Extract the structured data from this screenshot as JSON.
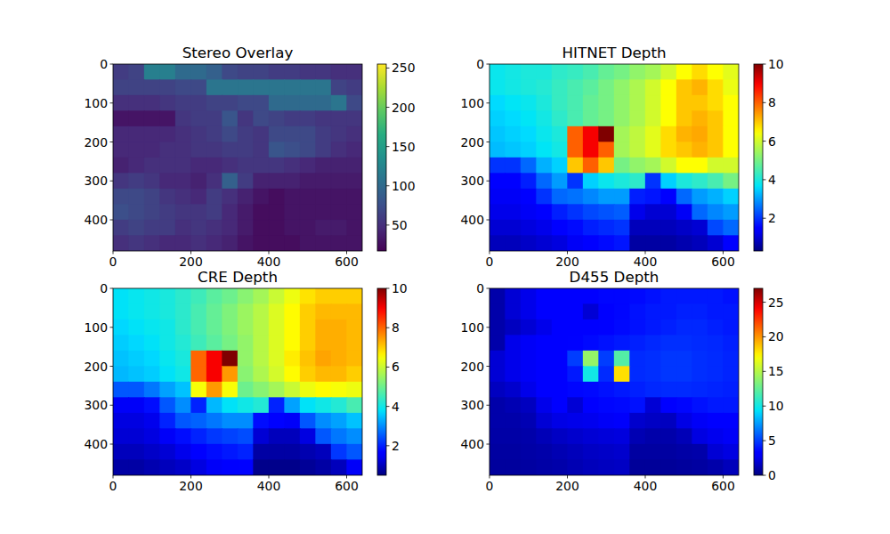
{
  "chart_data": [
    {
      "type": "heatmap",
      "title": "Stereo Overlay",
      "color": "viridis",
      "xlim": [
        0,
        640
      ],
      "ylim": [
        480,
        0
      ],
      "xticks": [
        0,
        200,
        400,
        600
      ],
      "yticks": [
        0,
        100,
        200,
        300,
        400
      ],
      "cells": [
        [
          60,
          65,
          120,
          120,
          100,
          100,
          90,
          70,
          65,
          65,
          60,
          60,
          55,
          55,
          50,
          50
        ],
        [
          65,
          65,
          65,
          65,
          70,
          70,
          110,
          110,
          110,
          110,
          110,
          110,
          110,
          110,
          65,
          60
        ],
        [
          50,
          50,
          50,
          55,
          60,
          60,
          65,
          65,
          70,
          70,
          100,
          100,
          100,
          100,
          110,
          70
        ],
        [
          30,
          30,
          30,
          30,
          55,
          60,
          60,
          80,
          55,
          70,
          65,
          60,
          60,
          55,
          55,
          55
        ],
        [
          45,
          45,
          45,
          45,
          50,
          55,
          60,
          70,
          60,
          55,
          70,
          70,
          70,
          60,
          55,
          50
        ],
        [
          45,
          45,
          45,
          50,
          50,
          55,
          55,
          60,
          60,
          55,
          80,
          75,
          70,
          60,
          50,
          45
        ],
        [
          40,
          45,
          50,
          50,
          50,
          45,
          45,
          50,
          55,
          55,
          55,
          50,
          45,
          40,
          40,
          40
        ],
        [
          55,
          60,
          55,
          45,
          45,
          40,
          50,
          90,
          60,
          40,
          40,
          40,
          35,
          35,
          35,
          35
        ],
        [
          70,
          70,
          65,
          55,
          50,
          45,
          60,
          50,
          40,
          30,
          25,
          30,
          30,
          30,
          30,
          30
        ],
        [
          75,
          70,
          65,
          60,
          55,
          55,
          60,
          45,
          35,
          25,
          25,
          30,
          30,
          30,
          30,
          30
        ],
        [
          60,
          65,
          60,
          60,
          50,
          55,
          50,
          45,
          35,
          25,
          25,
          30,
          30,
          35,
          35,
          30
        ],
        [
          50,
          55,
          50,
          45,
          45,
          50,
          45,
          40,
          30,
          25,
          25,
          25,
          30,
          30,
          30,
          30
        ]
      ],
      "colorbar": {
        "range": [
          17,
          255
        ],
        "ticks": [
          50,
          100,
          150,
          200,
          250
        ]
      }
    },
    {
      "type": "heatmap",
      "title": "HITNET Depth",
      "color": "jet",
      "xlim": [
        0,
        640
      ],
      "ylim": [
        480,
        0
      ],
      "xticks": [
        0,
        200,
        400,
        600
      ],
      "yticks": [
        0,
        100,
        200,
        300,
        400
      ],
      "cells": [
        [
          3.8,
          3.9,
          4,
          4,
          4.2,
          4.3,
          4.5,
          4.8,
          5,
          5.3,
          5.5,
          6,
          6.5,
          6.8,
          6.5,
          6.2
        ],
        [
          3.8,
          3.9,
          4,
          4.1,
          4.3,
          4.5,
          4.7,
          5,
          5.3,
          5.6,
          6,
          6.5,
          7,
          7.2,
          6.8,
          6.3
        ],
        [
          3.6,
          3.7,
          3.8,
          4,
          4.3,
          4.5,
          4.8,
          5,
          5.3,
          5.6,
          6,
          6.5,
          7,
          7,
          6.8,
          6.5
        ],
        [
          3.5,
          3.6,
          3.7,
          3.9,
          4.2,
          4.5,
          4.8,
          5,
          5.3,
          5.6,
          6,
          6.5,
          7,
          7.2,
          7,
          6.5
        ],
        [
          3.4,
          3.5,
          3.6,
          3.8,
          4,
          8,
          9,
          10,
          5.5,
          5.8,
          6.2,
          6.8,
          7.2,
          7.3,
          7,
          6.5
        ],
        [
          3.3,
          3.4,
          3.5,
          3.7,
          3.9,
          8,
          9,
          8,
          5.5,
          5.8,
          6.2,
          6.8,
          7,
          7.2,
          7,
          6.5
        ],
        [
          2,
          2,
          2.5,
          3.2,
          3.5,
          7,
          8,
          7,
          5,
          5.3,
          5.5,
          6,
          6.5,
          6.5,
          6,
          6
        ],
        [
          1.5,
          1.5,
          1.8,
          2.5,
          3,
          2,
          3.5,
          3.8,
          4,
          4.2,
          2,
          3.5,
          4,
          4.2,
          4.5,
          5
        ],
        [
          1.3,
          1.3,
          1.4,
          2,
          2.5,
          2.6,
          2.8,
          3,
          3,
          1.8,
          1.7,
          1.5,
          2.5,
          3,
          3.2,
          3.5
        ],
        [
          1.2,
          1.2,
          1.3,
          1.5,
          1.8,
          2,
          2.2,
          2.3,
          2.4,
          1.2,
          1,
          1,
          1.3,
          2.5,
          2.8,
          3
        ],
        [
          1,
          1,
          1.1,
          1.2,
          1.4,
          1.6,
          1.8,
          1.9,
          2,
          0.8,
          0.8,
          0.8,
          0.9,
          1,
          2.2,
          2.5
        ],
        [
          0.8,
          0.8,
          0.9,
          1,
          1.1,
          1.3,
          1.5,
          1.6,
          1.7,
          0.6,
          0.6,
          0.6,
          0.7,
          0.8,
          1,
          1.5
        ]
      ],
      "colorbar": {
        "range": [
          0.3,
          10
        ],
        "ticks": [
          2,
          4,
          6,
          8,
          10
        ]
      }
    },
    {
      "type": "heatmap",
      "title": "CRE Depth",
      "color": "jet",
      "xlim": [
        0,
        640
      ],
      "ylim": [
        480,
        0
      ],
      "xticks": [
        0,
        200,
        400,
        600
      ],
      "yticks": [
        0,
        100,
        200,
        300,
        400
      ],
      "cells": [
        [
          3.8,
          3.9,
          4,
          4.1,
          4.3,
          4.5,
          4.8,
          5,
          5.3,
          5.6,
          6,
          6.4,
          6.8,
          7,
          7,
          7
        ],
        [
          3.8,
          3.9,
          4,
          4.1,
          4.3,
          4.6,
          4.9,
          5.2,
          5.5,
          5.8,
          6.2,
          6.6,
          7,
          7.2,
          7.2,
          7.2
        ],
        [
          3.7,
          3.8,
          3.9,
          4,
          4.3,
          4.6,
          4.9,
          5.2,
          5.5,
          5.8,
          6.2,
          6.6,
          7,
          7.3,
          7.3,
          7.2
        ],
        [
          3.6,
          3.7,
          3.8,
          4,
          4.2,
          4.5,
          4.8,
          5.1,
          5.4,
          5.8,
          6.2,
          6.6,
          7,
          7.3,
          7.3,
          7.2
        ],
        [
          3.5,
          3.6,
          3.7,
          3.9,
          4.1,
          8,
          9,
          10,
          5.4,
          5.8,
          6.2,
          6.7,
          7.1,
          7.4,
          7.3,
          7.2
        ],
        [
          3.4,
          3.5,
          3.6,
          3.8,
          4,
          8,
          9,
          7.5,
          5.3,
          5.7,
          6.1,
          6.6,
          7,
          7.2,
          7.2,
          7
        ],
        [
          2.5,
          2.5,
          2.8,
          3.2,
          3.5,
          6.5,
          7.5,
          6.5,
          5,
          5.3,
          5.6,
          6,
          6.4,
          6.6,
          6.5,
          6.4
        ],
        [
          1.5,
          1.5,
          1.8,
          2.5,
          3,
          2,
          3.4,
          3.8,
          4,
          4.2,
          2,
          3.2,
          3.8,
          4,
          4.2,
          4.6
        ],
        [
          1.3,
          1.3,
          1.4,
          2,
          2.5,
          2.6,
          2.8,
          3,
          3,
          1.8,
          1.7,
          1.5,
          2.5,
          3,
          3.2,
          3.5
        ],
        [
          1.2,
          1.2,
          1.3,
          1.5,
          1.8,
          2,
          2.2,
          2.3,
          2.4,
          1.2,
          1,
          1,
          1.3,
          2.5,
          2.8,
          3
        ],
        [
          1,
          1,
          1.1,
          1.2,
          1.4,
          1.6,
          1.8,
          1.9,
          2,
          0.8,
          0.8,
          0.8,
          0.9,
          1,
          2.2,
          2.5
        ],
        [
          0.8,
          0.8,
          0.9,
          1,
          1.1,
          1.3,
          1.5,
          1.6,
          1.7,
          0.6,
          0.6,
          0.6,
          0.7,
          0.8,
          1,
          1.5
        ]
      ],
      "colorbar": {
        "range": [
          0.5,
          10
        ],
        "ticks": [
          2,
          4,
          6,
          8,
          10
        ]
      }
    },
    {
      "type": "heatmap",
      "title": "D455 Depth",
      "color": "jet",
      "xlim": [
        0,
        640
      ],
      "ylim": [
        480,
        0
      ],
      "xticks": [
        0,
        200,
        400,
        600
      ],
      "yticks": [
        0,
        100,
        200,
        300,
        400
      ],
      "cells": [
        [
          1,
          2,
          2.5,
          3,
          3,
          3.2,
          3.3,
          3.5,
          3.5,
          3.6,
          3.8,
          4,
          4,
          4,
          4,
          3.8
        ],
        [
          1,
          2,
          2.5,
          3,
          3,
          3,
          2,
          3.2,
          3.5,
          3.8,
          4,
          4,
          4.2,
          4.2,
          4,
          4
        ],
        [
          1,
          1.5,
          2,
          2.5,
          3,
          3,
          3.2,
          3.4,
          3.6,
          3.8,
          4,
          4.2,
          4.4,
          4.4,
          4.2,
          4
        ],
        [
          1,
          2.5,
          2.8,
          3,
          3.2,
          3.4,
          3.6,
          3.8,
          4,
          4.2,
          4.4,
          4.6,
          4.6,
          4.5,
          4.4,
          4.2
        ],
        [
          2,
          2.5,
          2.8,
          3,
          3.2,
          5,
          14,
          5,
          12,
          4.5,
          4.6,
          4.8,
          4.8,
          4.6,
          4.5,
          4.3
        ],
        [
          2,
          2.5,
          2.8,
          3,
          3.2,
          4,
          10,
          4.5,
          18,
          4.5,
          4.6,
          4.8,
          4.8,
          4.6,
          4.5,
          4.3
        ],
        [
          1.5,
          1.8,
          2.5,
          3,
          3.2,
          3.5,
          3.6,
          3.8,
          4,
          4.2,
          4.4,
          4.5,
          4.5,
          4.4,
          4.3,
          4.2
        ],
        [
          1,
          1.2,
          1.5,
          2.5,
          3,
          2,
          3.2,
          3.5,
          3.6,
          3.8,
          2,
          3,
          3.5,
          3.8,
          4,
          4
        ],
        [
          1,
          1,
          1.2,
          2,
          2.4,
          2.5,
          2.6,
          2.8,
          2.9,
          1.8,
          1.6,
          1.5,
          2.4,
          2.8,
          3,
          3.2
        ],
        [
          0.9,
          0.9,
          1,
          1.3,
          1.6,
          1.8,
          2,
          2.1,
          2.2,
          1.2,
          1,
          1,
          1.3,
          2.3,
          2.6,
          2.8
        ],
        [
          0.8,
          0.8,
          0.9,
          1,
          1.2,
          1.4,
          1.6,
          1.7,
          1.8,
          0.8,
          0.8,
          0.8,
          0.9,
          1,
          2,
          2.3
        ],
        [
          0.7,
          0.7,
          0.8,
          0.9,
          1,
          1.2,
          1.4,
          1.5,
          1.6,
          0.6,
          0.6,
          0.6,
          0.7,
          0.8,
          1,
          1.4
        ]
      ],
      "colorbar": {
        "range": [
          0,
          27
        ],
        "ticks": [
          0,
          5,
          10,
          15,
          20,
          25
        ]
      }
    }
  ]
}
